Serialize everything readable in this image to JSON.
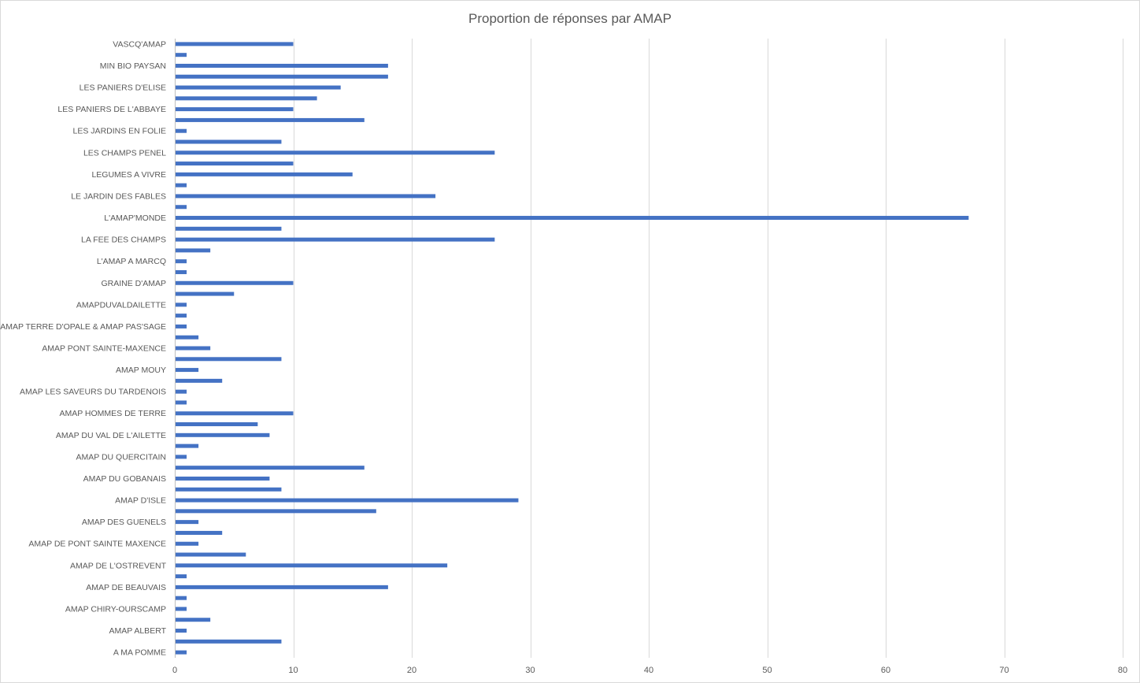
{
  "chart_data": {
    "type": "bar",
    "orientation": "horizontal",
    "title": "Proportion de réponses par AMAP",
    "xlim": [
      0,
      80
    ],
    "x_ticks": [
      0,
      10,
      20,
      30,
      40,
      50,
      60,
      70,
      80
    ],
    "grid": true,
    "legend": "none",
    "bar_color": "#4472C4",
    "categories": [
      {
        "label": "A MA POMME",
        "value": 1
      },
      {
        "label": "",
        "value": 9
      },
      {
        "label": "AMAP ALBERT",
        "value": 1
      },
      {
        "label": "",
        "value": 3
      },
      {
        "label": "AMAP CHIRY-OURSCAMP",
        "value": 1
      },
      {
        "label": "",
        "value": 1
      },
      {
        "label": "AMAP DE BEAUVAIS",
        "value": 18
      },
      {
        "label": "",
        "value": 1
      },
      {
        "label": "AMAP DE L'OSTREVENT",
        "value": 23
      },
      {
        "label": "",
        "value": 6
      },
      {
        "label": "AMAP DE PONT SAINTE MAXENCE",
        "value": 2
      },
      {
        "label": "",
        "value": 4
      },
      {
        "label": "AMAP DES GUENELS",
        "value": 2
      },
      {
        "label": "",
        "value": 17
      },
      {
        "label": "AMAP D'ISLE",
        "value": 29
      },
      {
        "label": "",
        "value": 9
      },
      {
        "label": "AMAP DU GOBANAIS",
        "value": 8
      },
      {
        "label": "",
        "value": 16
      },
      {
        "label": "AMAP DU QUERCITAIN",
        "value": 1
      },
      {
        "label": "",
        "value": 2
      },
      {
        "label": "AMAP DU VAL DE L'AILETTE",
        "value": 8
      },
      {
        "label": "",
        "value": 7
      },
      {
        "label": "AMAP HOMMES DE TERRE",
        "value": 10
      },
      {
        "label": "",
        "value": 1
      },
      {
        "label": "AMAP LES SAVEURS DU TARDENOIS",
        "value": 1
      },
      {
        "label": "",
        "value": 4
      },
      {
        "label": "AMAP MOUY",
        "value": 2
      },
      {
        "label": "",
        "value": 9
      },
      {
        "label": "AMAP PONT SAINTE-MAXENCE",
        "value": 3
      },
      {
        "label": "",
        "value": 2
      },
      {
        "label": "AMAP TERRE D'OPALE & AMAP PAS'SAGE",
        "value": 1
      },
      {
        "label": "",
        "value": 1
      },
      {
        "label": "AMAPDUVALDAILETTE",
        "value": 1
      },
      {
        "label": "",
        "value": 5
      },
      {
        "label": "GRAINE D'AMAP",
        "value": 10
      },
      {
        "label": "",
        "value": 1
      },
      {
        "label": "L'AMAP A MARCQ",
        "value": 1
      },
      {
        "label": "",
        "value": 3
      },
      {
        "label": "LA FEE DES CHAMPS",
        "value": 27
      },
      {
        "label": "",
        "value": 9
      },
      {
        "label": "L'AMAP'MONDE",
        "value": 67
      },
      {
        "label": "",
        "value": 1
      },
      {
        "label": "LE JARDIN DES FABLES",
        "value": 22
      },
      {
        "label": "",
        "value": 1
      },
      {
        "label": "LEGUMES A VIVRE",
        "value": 15
      },
      {
        "label": "",
        "value": 10
      },
      {
        "label": "LES CHAMPS PENEL",
        "value": 27
      },
      {
        "label": "",
        "value": 9
      },
      {
        "label": "LES JARDINS EN FOLIE",
        "value": 1
      },
      {
        "label": "",
        "value": 16
      },
      {
        "label": "LES PANIERS DE L'ABBAYE",
        "value": 10
      },
      {
        "label": "",
        "value": 12
      },
      {
        "label": "LES PANIERS D'ELISE",
        "value": 14
      },
      {
        "label": "",
        "value": 18
      },
      {
        "label": "MIN BIO PAYSAN",
        "value": 18
      },
      {
        "label": "",
        "value": 1
      },
      {
        "label": "VASCQ'AMAP",
        "value": 10
      }
    ]
  }
}
